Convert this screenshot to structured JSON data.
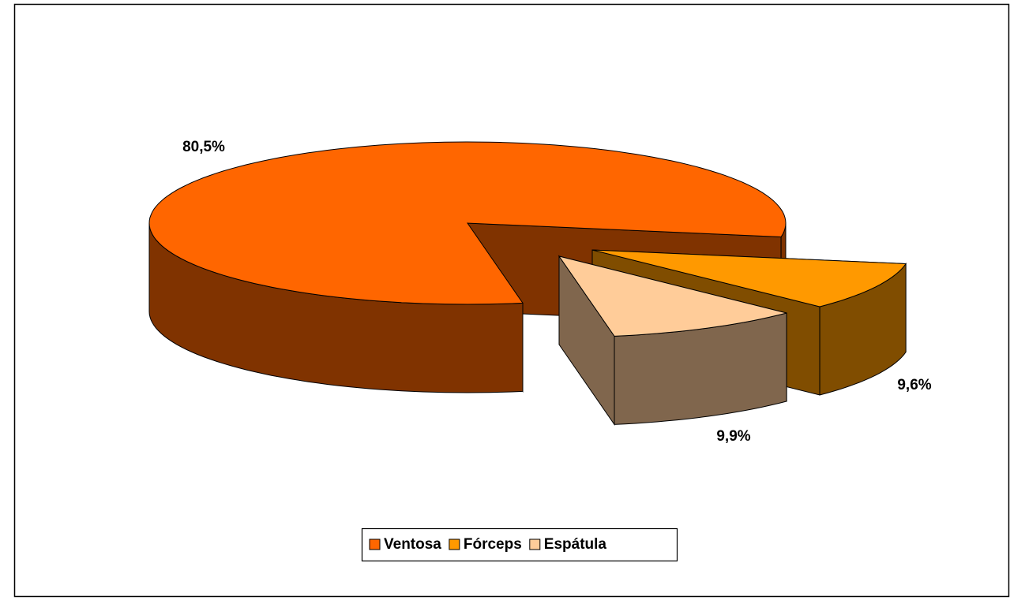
{
  "chart_data": {
    "type": "pie3d",
    "categories": [
      "Ventosa",
      "Fórceps",
      "Espátula"
    ],
    "values": [
      80.5,
      9.6,
      9.9
    ],
    "value_labels": [
      "80,5%",
      "9,6%",
      "9,9%"
    ],
    "colors": [
      "#FF6600",
      "#FF9900",
      "#FFCC99"
    ],
    "legend": "bottom"
  }
}
